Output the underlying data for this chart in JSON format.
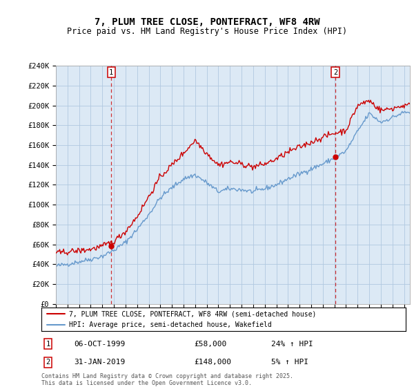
{
  "title": "7, PLUM TREE CLOSE, PONTEFRACT, WF8 4RW",
  "subtitle": "Price paid vs. HM Land Registry's House Price Index (HPI)",
  "ylabel_ticks": [
    "£0",
    "£20K",
    "£40K",
    "£60K",
    "£80K",
    "£100K",
    "£120K",
    "£140K",
    "£160K",
    "£180K",
    "£200K",
    "£220K",
    "£240K"
  ],
  "ylim": [
    0,
    240000
  ],
  "yticks": [
    0,
    20000,
    40000,
    60000,
    80000,
    100000,
    120000,
    140000,
    160000,
    180000,
    200000,
    220000,
    240000
  ],
  "xlim_start": 1995.0,
  "xlim_end": 2025.5,
  "xtick_years": [
    1995,
    1996,
    1997,
    1998,
    1999,
    2000,
    2001,
    2002,
    2003,
    2004,
    2005,
    2006,
    2007,
    2008,
    2009,
    2010,
    2011,
    2012,
    2013,
    2014,
    2015,
    2016,
    2017,
    2018,
    2019,
    2020,
    2021,
    2022,
    2023,
    2024,
    2025
  ],
  "legend_line1": "7, PLUM TREE CLOSE, PONTEFRACT, WF8 4RW (semi-detached house)",
  "legend_line2": "HPI: Average price, semi-detached house, Wakefield",
  "line1_color": "#cc0000",
  "line2_color": "#6699cc",
  "plot_bg_color": "#dce9f5",
  "point1_x": 1999.77,
  "point1_y": 58000,
  "point1_label": "1",
  "point1_date": "06-OCT-1999",
  "point1_price": "£58,000",
  "point1_hpi": "24% ↑ HPI",
  "point2_x": 2019.08,
  "point2_y": 148000,
  "point2_label": "2",
  "point2_date": "31-JAN-2019",
  "point2_price": "£148,000",
  "point2_hpi": "5% ↑ HPI",
  "vline1_x": 1999.77,
  "vline2_x": 2019.08,
  "footer": "Contains HM Land Registry data © Crown copyright and database right 2025.\nThis data is licensed under the Open Government Licence v3.0.",
  "background_color": "#ffffff",
  "grid_color": "#b0c8e0",
  "title_fontsize": 10,
  "subtitle_fontsize": 8.5,
  "tick_fontsize": 7.5,
  "hpi_base": [
    38000,
    40000,
    42500,
    45000,
    48000,
    54000,
    62000,
    75000,
    90000,
    107000,
    117000,
    126000,
    130000,
    122000,
    113000,
    116000,
    115000,
    113000,
    116000,
    120000,
    126000,
    131000,
    136000,
    141000,
    147000,
    154000,
    174000,
    192000,
    183000,
    188000,
    193000
  ],
  "prop_base": [
    51000,
    52500,
    53500,
    55000,
    58000,
    63000,
    73000,
    88000,
    108000,
    128000,
    140000,
    152000,
    165000,
    152000,
    140000,
    143000,
    141000,
    138000,
    141000,
    146000,
    153000,
    158000,
    163000,
    168000,
    172000,
    175000,
    200000,
    205000,
    195000,
    197000,
    200000
  ],
  "hpi_noise": 1200,
  "prop_noise": 1500,
  "n_points": 370,
  "random_seed": 42
}
